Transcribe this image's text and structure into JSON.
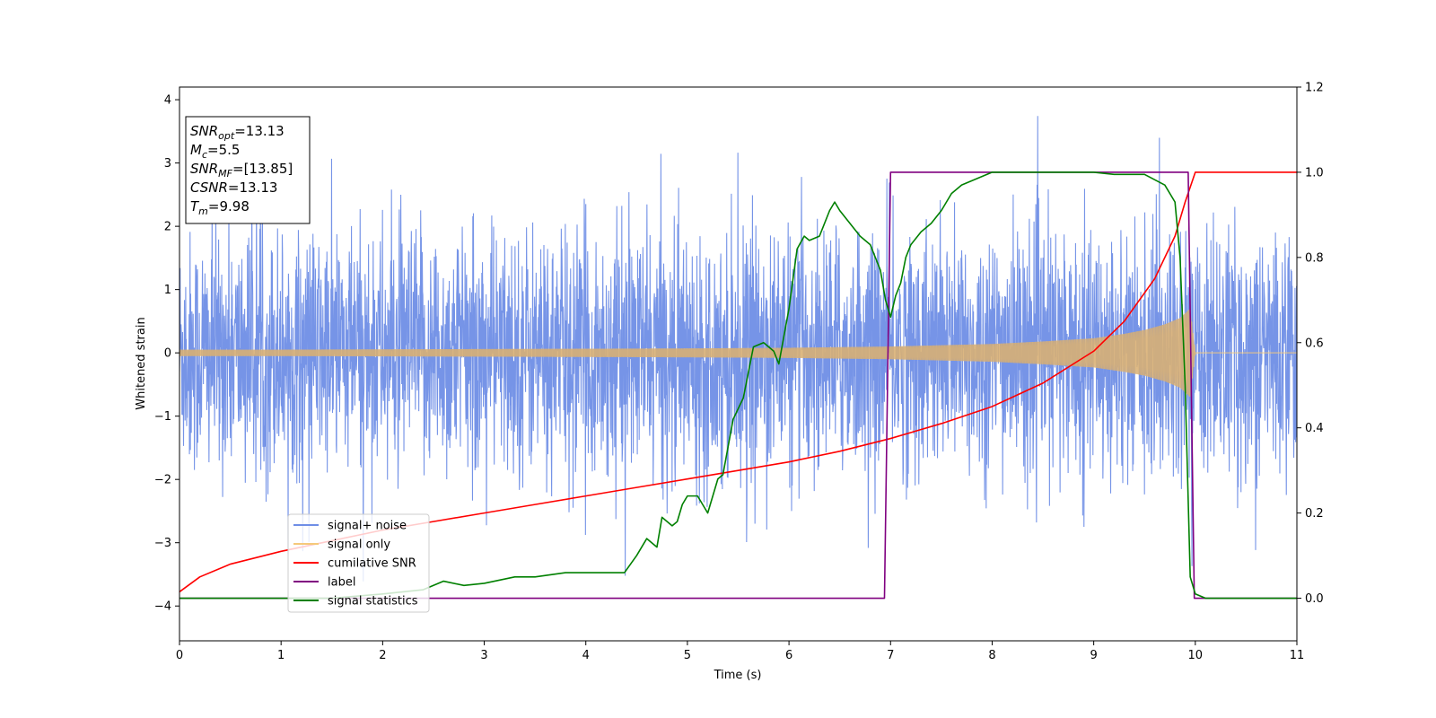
{
  "chart_data": {
    "type": "line",
    "xlabel": "Time (s)",
    "ylabel": "Whitened strain",
    "xlim": [
      0,
      11
    ],
    "ylim": [
      -4.55,
      4.2
    ],
    "y2lim": [
      -0.1,
      1.2
    ],
    "xticks": [
      0,
      1,
      2,
      3,
      4,
      5,
      6,
      7,
      8,
      9,
      10,
      11
    ],
    "yticks": [
      -4,
      -3,
      -2,
      -1,
      0,
      1,
      2,
      3,
      4
    ],
    "y2ticks": [
      "0.0",
      "0.2",
      "0.4",
      "0.6",
      "0.8",
      "1.0",
      "1.2"
    ],
    "grid": false,
    "legend_position": "lower-left",
    "series": [
      {
        "name": "signal+ noise",
        "color": "#6f8ee6",
        "axis": "left",
        "noise_std": 0.95,
        "signal_window": [
          0,
          10
        ],
        "coalescence_time": 10
      },
      {
        "name": "signal only",
        "color": "#f5c97a",
        "axis": "left",
        "envelope": {
          "x": [
            0,
            1,
            2,
            3,
            4,
            5,
            6,
            7,
            8,
            8.5,
            9,
            9.3,
            9.5,
            9.7,
            9.85,
            9.95,
            10,
            11
          ],
          "y": [
            0.05,
            0.05,
            0.055,
            0.06,
            0.065,
            0.07,
            0.08,
            0.1,
            0.14,
            0.18,
            0.23,
            0.3,
            0.36,
            0.45,
            0.55,
            0.7,
            0,
            0
          ]
        }
      },
      {
        "name": "cumilative SNR",
        "color": "#ff0000",
        "axis": "right",
        "x": [
          0,
          0.2,
          0.5,
          1,
          1.5,
          2,
          2.5,
          3,
          3.5,
          4,
          4.5,
          5,
          5.5,
          6,
          6.5,
          7,
          7.5,
          8,
          8.5,
          9,
          9.3,
          9.6,
          9.8,
          9.9,
          10,
          10.5,
          11
        ],
        "y": [
          0.015,
          0.05,
          0.08,
          0.11,
          0.135,
          0.16,
          0.18,
          0.2,
          0.22,
          0.24,
          0.26,
          0.28,
          0.3,
          0.32,
          0.345,
          0.375,
          0.41,
          0.45,
          0.505,
          0.58,
          0.65,
          0.75,
          0.85,
          0.93,
          1.0,
          1.0,
          1.0
        ]
      },
      {
        "name": "label",
        "color": "#800080",
        "axis": "right",
        "x": [
          0,
          6.94,
          7.0,
          9.93,
          9.99,
          11
        ],
        "y": [
          0,
          0,
          1,
          1,
          0,
          0
        ]
      },
      {
        "name": "signal statistics",
        "color": "#008000",
        "axis": "right",
        "x": [
          0,
          0.5,
          1,
          1.5,
          2,
          2.4,
          2.6,
          2.8,
          3,
          3.3,
          3.5,
          3.8,
          4,
          4.2,
          4.38,
          4.5,
          4.6,
          4.7,
          4.75,
          4.85,
          4.9,
          4.95,
          5.0,
          5.1,
          5.2,
          5.3,
          5.35,
          5.45,
          5.55,
          5.65,
          5.75,
          5.85,
          5.9,
          6.0,
          6.08,
          6.15,
          6.2,
          6.3,
          6.4,
          6.45,
          6.5,
          6.6,
          6.7,
          6.8,
          6.9,
          6.95,
          7.0,
          7.05,
          7.1,
          7.15,
          7.2,
          7.3,
          7.4,
          7.5,
          7.6,
          7.7,
          7.8,
          8,
          8.5,
          9,
          9.2,
          9.5,
          9.7,
          9.8,
          9.85,
          9.9,
          9.95,
          10,
          10.1,
          11
        ],
        "y": [
          0,
          0,
          0,
          0,
          0.01,
          0.02,
          0.04,
          0.03,
          0.035,
          0.05,
          0.05,
          0.06,
          0.06,
          0.06,
          0.06,
          0.1,
          0.14,
          0.12,
          0.19,
          0.17,
          0.18,
          0.22,
          0.24,
          0.24,
          0.2,
          0.28,
          0.29,
          0.42,
          0.47,
          0.59,
          0.6,
          0.58,
          0.55,
          0.68,
          0.82,
          0.85,
          0.84,
          0.85,
          0.91,
          0.93,
          0.91,
          0.88,
          0.85,
          0.83,
          0.77,
          0.7,
          0.66,
          0.71,
          0.74,
          0.8,
          0.83,
          0.86,
          0.88,
          0.91,
          0.95,
          0.97,
          0.98,
          1.0,
          1.0,
          1.0,
          0.995,
          0.995,
          0.97,
          0.93,
          0.8,
          0.5,
          0.05,
          0.01,
          0,
          0
        ]
      }
    ],
    "annotation": {
      "lines": [
        {
          "sym": "SNR",
          "sub": "opt",
          "val": "=13.13"
        },
        {
          "sym": "M",
          "sub": "c",
          "val": "=5.5"
        },
        {
          "sym": "SNR",
          "sub": "MF",
          "val": "=[13.85]"
        },
        {
          "sym": "CSNR",
          "sub": "",
          "val": "=13.13"
        },
        {
          "sym": "T",
          "sub": "m",
          "val": "=9.98"
        }
      ]
    }
  }
}
